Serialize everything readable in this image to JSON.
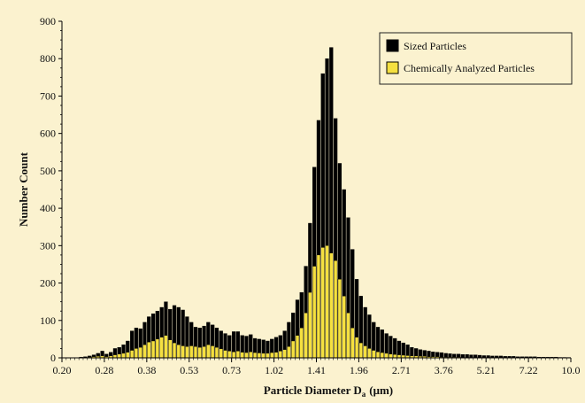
{
  "chart_data": {
    "type": "bar",
    "xlabel": "Particle Diameter D",
    "xlabel_subscript": "a",
    "xlabel_unit": "(μm)",
    "ylabel": "Number Count",
    "ylim": [
      0,
      900
    ],
    "y_ticks": [
      "0",
      "100",
      "200",
      "300",
      "400",
      "500",
      "600",
      "700",
      "800",
      "900"
    ],
    "x_ticks": [
      "0.20",
      "0.28",
      "0.38",
      "0.53",
      "0.73",
      "1.02",
      "1.41",
      "1.96",
      "2.71",
      "3.76",
      "5.21",
      "7.22",
      "10.0"
    ],
    "x_scale": "log",
    "bins_per_tick": 10,
    "grid": false,
    "legend_position": "top-right",
    "series": [
      {
        "name": "Sized Particles",
        "color": "#000000",
        "values": [
          0,
          0,
          0,
          0,
          2,
          3,
          5,
          8,
          12,
          18,
          10,
          15,
          25,
          28,
          35,
          45,
          72,
          80,
          78,
          95,
          110,
          118,
          125,
          135,
          150,
          130,
          140,
          135,
          128,
          110,
          95,
          82,
          80,
          85,
          95,
          88,
          80,
          72,
          65,
          60,
          70,
          70,
          60,
          58,
          62,
          52,
          50,
          48,
          45,
          50,
          55,
          60,
          72,
          95,
          120,
          155,
          175,
          245,
          360,
          510,
          635,
          760,
          800,
          830,
          640,
          520,
          450,
          375,
          290,
          210,
          165,
          135,
          115,
          95,
          82,
          75,
          65,
          58,
          52,
          45,
          40,
          35,
          28,
          25,
          22,
          20,
          18,
          16,
          15,
          14,
          12,
          11,
          10,
          10,
          9,
          9,
          8,
          8,
          7,
          6,
          6,
          5,
          5,
          5,
          4,
          4,
          4,
          3,
          3,
          3,
          3,
          3,
          2,
          2,
          2,
          2,
          2,
          1,
          1,
          1
        ]
      },
      {
        "name": "Chemically Analyzed Particles",
        "color": "#f5e040",
        "values": [
          0,
          0,
          0,
          0,
          0,
          1,
          2,
          3,
          4,
          5,
          3,
          5,
          8,
          10,
          12,
          15,
          20,
          25,
          28,
          35,
          42,
          45,
          50,
          55,
          60,
          48,
          40,
          35,
          32,
          30,
          32,
          30,
          28,
          30,
          35,
          32,
          28,
          24,
          20,
          18,
          16,
          18,
          15,
          14,
          16,
          14,
          13,
          12,
          12,
          14,
          15,
          18,
          22,
          30,
          45,
          60,
          80,
          120,
          175,
          245,
          275,
          295,
          300,
          280,
          260,
          210,
          165,
          120,
          80,
          55,
          40,
          32,
          25,
          20,
          16,
          14,
          12,
          10,
          9,
          8,
          7,
          6,
          5,
          5,
          4,
          4,
          3,
          3,
          3,
          2,
          2,
          2,
          2,
          2,
          1,
          1,
          1,
          1,
          1,
          1,
          1,
          1,
          1,
          1,
          1,
          1,
          1,
          1,
          1,
          1,
          1,
          1,
          1,
          1,
          1,
          1,
          1,
          1,
          1,
          0
        ]
      }
    ]
  }
}
